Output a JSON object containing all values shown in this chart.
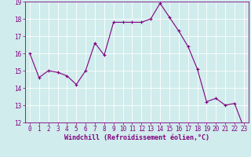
{
  "x": [
    0,
    1,
    2,
    3,
    4,
    5,
    6,
    7,
    8,
    9,
    10,
    11,
    12,
    13,
    14,
    15,
    16,
    17,
    18,
    19,
    20,
    21,
    22,
    23
  ],
  "y": [
    16.0,
    14.6,
    15.0,
    14.9,
    14.7,
    14.2,
    15.0,
    16.6,
    15.9,
    17.8,
    17.8,
    17.8,
    17.8,
    18.0,
    18.9,
    18.1,
    17.3,
    16.4,
    15.1,
    13.2,
    13.4,
    13.0,
    13.1,
    11.7
  ],
  "line_color": "#800080",
  "marker": "+",
  "marker_size": 3,
  "marker_lw": 0.8,
  "bg_color": "#d0ecec",
  "grid_color": "#ffffff",
  "xlabel": "Windchill (Refroidissement éolien,°C)",
  "xlabel_color": "#800080",
  "tick_color": "#800080",
  "ylim": [
    12,
    19
  ],
  "xlim": [
    -0.5,
    23.5
  ],
  "yticks": [
    12,
    13,
    14,
    15,
    16,
    17,
    18,
    19
  ],
  "xticks": [
    0,
    1,
    2,
    3,
    4,
    5,
    6,
    7,
    8,
    9,
    10,
    11,
    12,
    13,
    14,
    15,
    16,
    17,
    18,
    19,
    20,
    21,
    22,
    23
  ],
  "spine_color": "#800080",
  "line_width": 0.8,
  "tick_fontsize": 5.5,
  "xlabel_fontsize": 6.0
}
